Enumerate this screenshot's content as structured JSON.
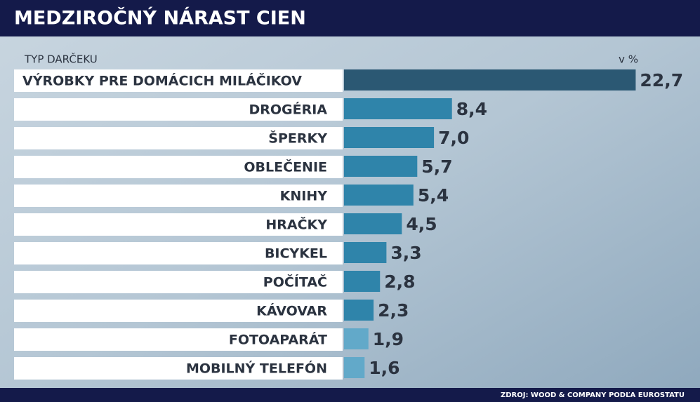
{
  "chart_data": {
    "type": "bar",
    "orientation": "horizontal",
    "title": "MEDZIROČNÝ NÁRAST CIEN",
    "category_axis_label": "TYP DARČEKU",
    "unit": "v %",
    "source": "ZDROJ: WOOD & COMPANY PODĽA EUROSTATU",
    "categories": [
      "VÝROBKY PRE DOMÁCICH MILÁČIKOV",
      "DROGÉRIA",
      "ŠPERKY",
      "OBLEČENIE",
      "KNIHY",
      "HRAČKY",
      "BICYKEL",
      "POČÍTAČ",
      "KÁVOVAR",
      "FOTOAPARÁT",
      "MOBILNÝ TELEFÓN"
    ],
    "values": [
      22.7,
      8.4,
      7.0,
      5.7,
      5.4,
      4.5,
      3.3,
      2.8,
      2.3,
      1.9,
      1.6
    ],
    "value_labels": [
      "22,7",
      "8,4",
      "7,0",
      "5,7",
      "5,4",
      "4,5",
      "3,3",
      "2,8",
      "2,3",
      "1,9",
      "1,6"
    ],
    "colors": [
      "#2b5873",
      "#2f84aa",
      "#2f84aa",
      "#2f84aa",
      "#2f84aa",
      "#2f84aa",
      "#2f84aa",
      "#2f84aa",
      "#2f84aa",
      "#62a9c9",
      "#62a9c9"
    ]
  }
}
